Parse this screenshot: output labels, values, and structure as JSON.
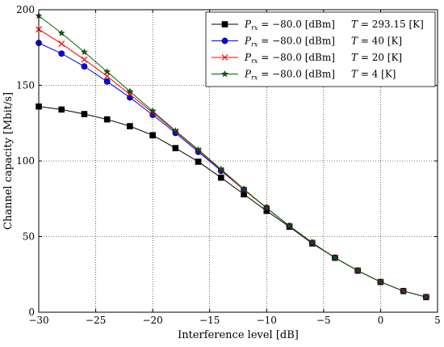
{
  "chart_data": {
    "type": "line",
    "xlabel": "Interference level [dB]",
    "ylabel": "Channel capacity [Mbit/s]",
    "xlim": [
      -30,
      5
    ],
    "ylim": [
      0,
      200
    ],
    "xticks": [
      -30,
      -25,
      -20,
      -15,
      -10,
      -5,
      0,
      5
    ],
    "yticks": [
      0,
      50,
      100,
      150,
      200
    ],
    "xtick_labels": [
      "−30",
      "−25",
      "−20",
      "−15",
      "−10",
      "−5",
      "0",
      "5"
    ],
    "ytick_labels": [
      "0",
      "50",
      "100",
      "150",
      "200"
    ],
    "grid": true,
    "legend_position": "top-right",
    "x": [
      -30,
      -28,
      -26,
      -24,
      -22,
      -20,
      -18,
      -16,
      -14,
      -12,
      -10,
      -8,
      -6,
      -4,
      -2,
      0,
      2,
      4
    ],
    "series": [
      {
        "name": "P_rx = −80.0 [dBm]    T = 293.15 [K]",
        "label_value": "−80.0",
        "label_T": "293.15",
        "color": "#000000",
        "marker": "square",
        "values": [
          136,
          134,
          131,
          127.5,
          123,
          117,
          108.5,
          99.5,
          89,
          78,
          67,
          56.5,
          45.5,
          36,
          27.5,
          20,
          14,
          10
        ]
      },
      {
        "name": "P_rx = −80.0 [dBm]    T = 40 [K]",
        "label_value": "−80.0",
        "label_T": "40",
        "color": "#0000ff",
        "marker": "circle",
        "values": [
          178,
          171,
          162.5,
          152.5,
          142,
          130.5,
          118.5,
          106,
          93.5,
          81,
          69,
          57,
          46,
          36,
          27.5,
          20,
          14,
          10
        ]
      },
      {
        "name": "P_rx = −80.0 [dBm]    T = 20 [K]",
        "label_value": "−80.0",
        "label_T": "20",
        "color": "#ff0000",
        "marker": "x",
        "values": [
          187,
          177.5,
          167,
          156,
          144,
          132,
          119.5,
          107,
          94,
          81,
          69,
          57,
          46,
          36,
          27.5,
          20,
          14,
          10
        ]
      },
      {
        "name": "P_rx = −80.0 [dBm]    T = 4 [K]",
        "label_value": "−80.0",
        "label_T": "4",
        "color": "#006400",
        "marker": "star",
        "values": [
          196,
          184.5,
          172,
          159,
          146,
          133,
          120,
          107.5,
          94.5,
          81.5,
          69,
          57,
          46,
          36,
          27.5,
          20,
          14,
          10
        ]
      }
    ]
  }
}
